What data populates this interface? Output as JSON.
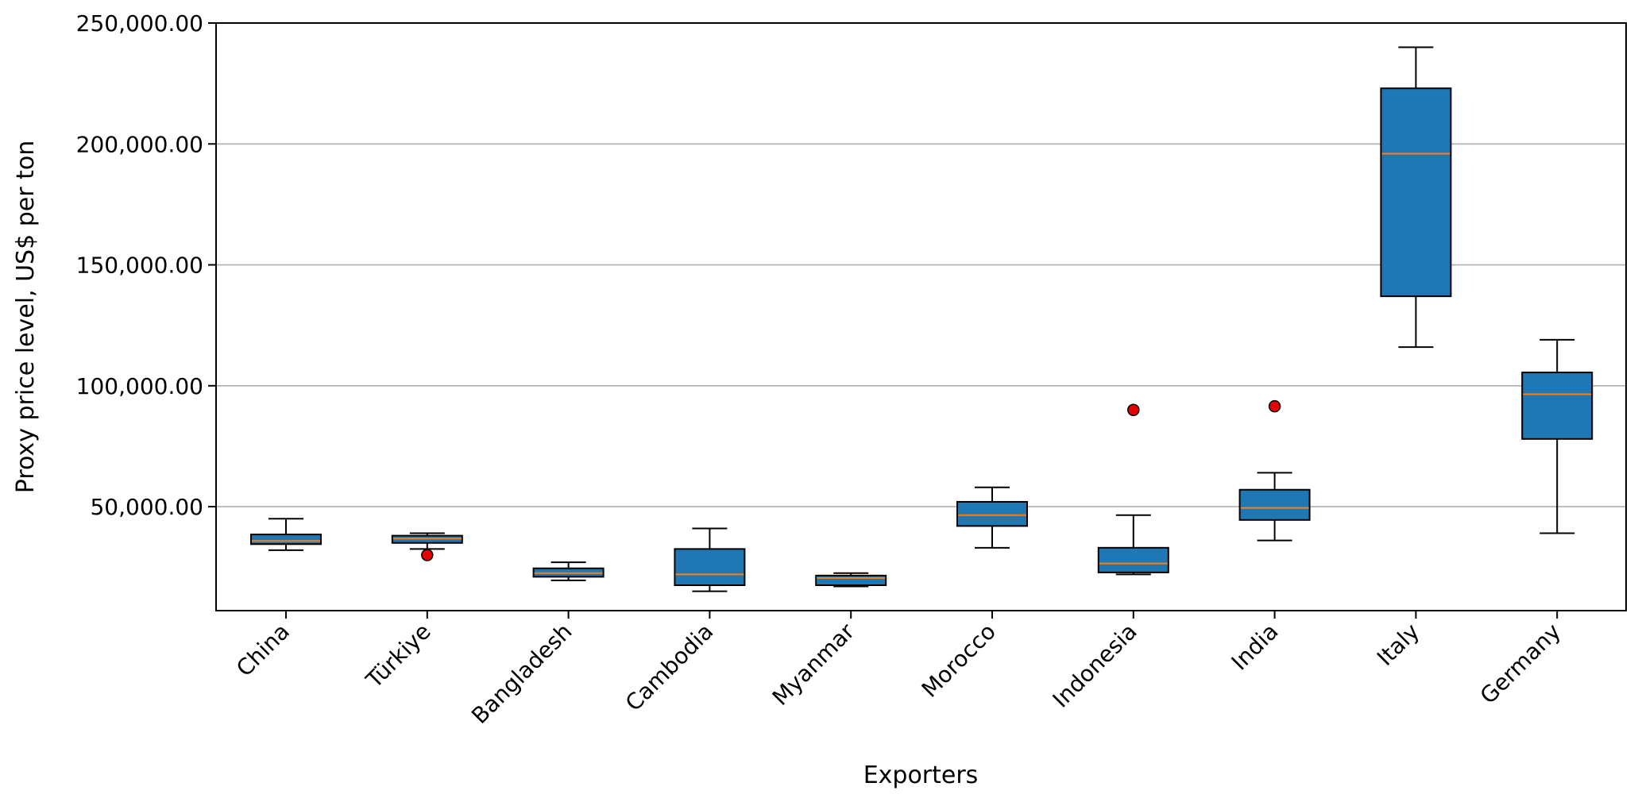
{
  "chart_data": {
    "type": "box",
    "title": "",
    "xlabel": "Exporters",
    "ylabel": "Proxy price level, US$ per ton",
    "ylim": [
      7000,
      250000
    ],
    "yticks": [
      50000,
      100000,
      150000,
      200000,
      250000
    ],
    "ytick_labels": [
      "50,000.00",
      "100,000.00",
      "150,000.00",
      "200,000.00",
      "250,000.00"
    ],
    "grid": "horizontal",
    "colors": {
      "box_fill": "#1f77b4",
      "median": "#ff7f0e",
      "outlier": "#e60000",
      "grid": "#b0b0b0"
    },
    "categories": [
      "China",
      "Türkiye",
      "Bangladesh",
      "Cambodia",
      "Myanmar",
      "Morocco",
      "Indonesia",
      "India",
      "Italy",
      "Germany"
    ],
    "boxes": [
      {
        "whisker_low": 32000,
        "q1": 34500,
        "median": 35800,
        "q3": 38500,
        "whisker_high": 45000,
        "outliers": []
      },
      {
        "whisker_low": 32500,
        "q1": 35000,
        "median": 36800,
        "q3": 38000,
        "whisker_high": 39000,
        "outliers": [
          30000
        ]
      },
      {
        "whisker_low": 19500,
        "q1": 21000,
        "median": 22500,
        "q3": 24500,
        "whisker_high": 27000,
        "outliers": []
      },
      {
        "whisker_low": 15000,
        "q1": 17500,
        "median": 22000,
        "q3": 32500,
        "whisker_high": 41000,
        "outliers": []
      },
      {
        "whisker_low": 17000,
        "q1": 17500,
        "median": 20500,
        "q3": 21500,
        "whisker_high": 22500,
        "outliers": []
      },
      {
        "whisker_low": 33000,
        "q1": 42000,
        "median": 46500,
        "q3": 52000,
        "whisker_high": 58000,
        "outliers": []
      },
      {
        "whisker_low": 22000,
        "q1": 22800,
        "median": 26500,
        "q3": 33000,
        "whisker_high": 46500,
        "outliers": [
          90000
        ]
      },
      {
        "whisker_low": 36000,
        "q1": 44500,
        "median": 49500,
        "q3": 57000,
        "whisker_high": 64000,
        "outliers": [
          91500
        ]
      },
      {
        "whisker_low": 116000,
        "q1": 137000,
        "median": 196000,
        "q3": 223000,
        "whisker_high": 240000,
        "outliers": []
      },
      {
        "whisker_low": 39000,
        "q1": 78000,
        "median": 96500,
        "q3": 105500,
        "whisker_high": 119000,
        "outliers": []
      }
    ]
  }
}
